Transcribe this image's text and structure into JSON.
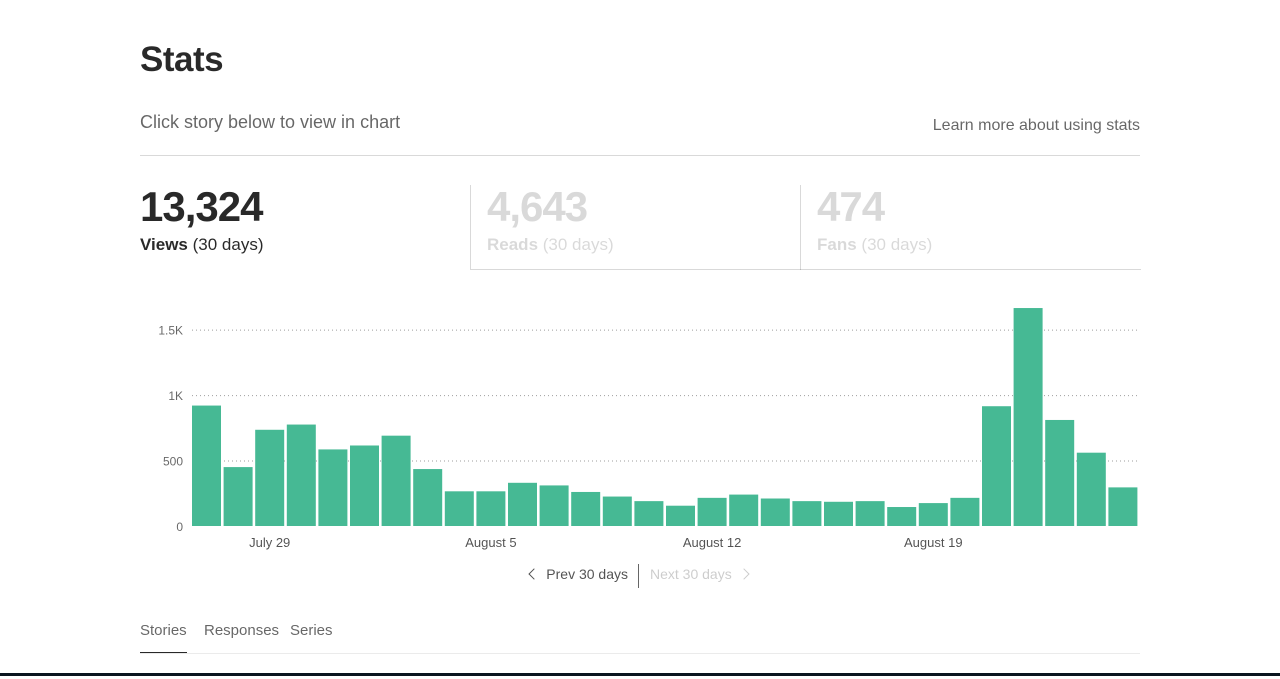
{
  "header": {
    "title": "Stats",
    "subtitle": "Click story below to view in chart",
    "learn_link": "Learn more about using stats"
  },
  "metrics": [
    {
      "value": "13,324",
      "label": "Views",
      "period": "(30 days)",
      "active": true
    },
    {
      "value": "4,643",
      "label": "Reads",
      "period": "(30 days)",
      "active": false
    },
    {
      "value": "474",
      "label": "Fans",
      "period": "(30 days)",
      "active": false
    }
  ],
  "colors": {
    "bar": "#46b994",
    "gridline": "#9e9e9e"
  },
  "chart_data": {
    "type": "bar",
    "ylim": [
      0,
      1650
    ],
    "yticks": [
      {
        "value": 0,
        "label": "0"
      },
      {
        "value": 500,
        "label": "500"
      },
      {
        "value": 1000,
        "label": "1K"
      },
      {
        "value": 1500,
        "label": "1.5K"
      }
    ],
    "grid": true,
    "values": [
      920,
      450,
      735,
      775,
      585,
      615,
      690,
      435,
      265,
      265,
      330,
      310,
      260,
      225,
      190,
      155,
      215,
      240,
      210,
      190,
      185,
      190,
      145,
      175,
      215,
      915,
      1665,
      810,
      560,
      295
    ],
    "xticks": [
      {
        "index": 2,
        "label": "July 29"
      },
      {
        "index": 9,
        "label": "August 5"
      },
      {
        "index": 16,
        "label": "August 12"
      },
      {
        "index": 23,
        "label": "August 19"
      }
    ]
  },
  "pager": {
    "prev_label": "Prev 30 days",
    "next_label": "Next 30 days"
  },
  "tabs": [
    {
      "label": "Stories",
      "active": true
    },
    {
      "label": "Responses",
      "active": false
    },
    {
      "label": "Series",
      "active": false
    }
  ]
}
